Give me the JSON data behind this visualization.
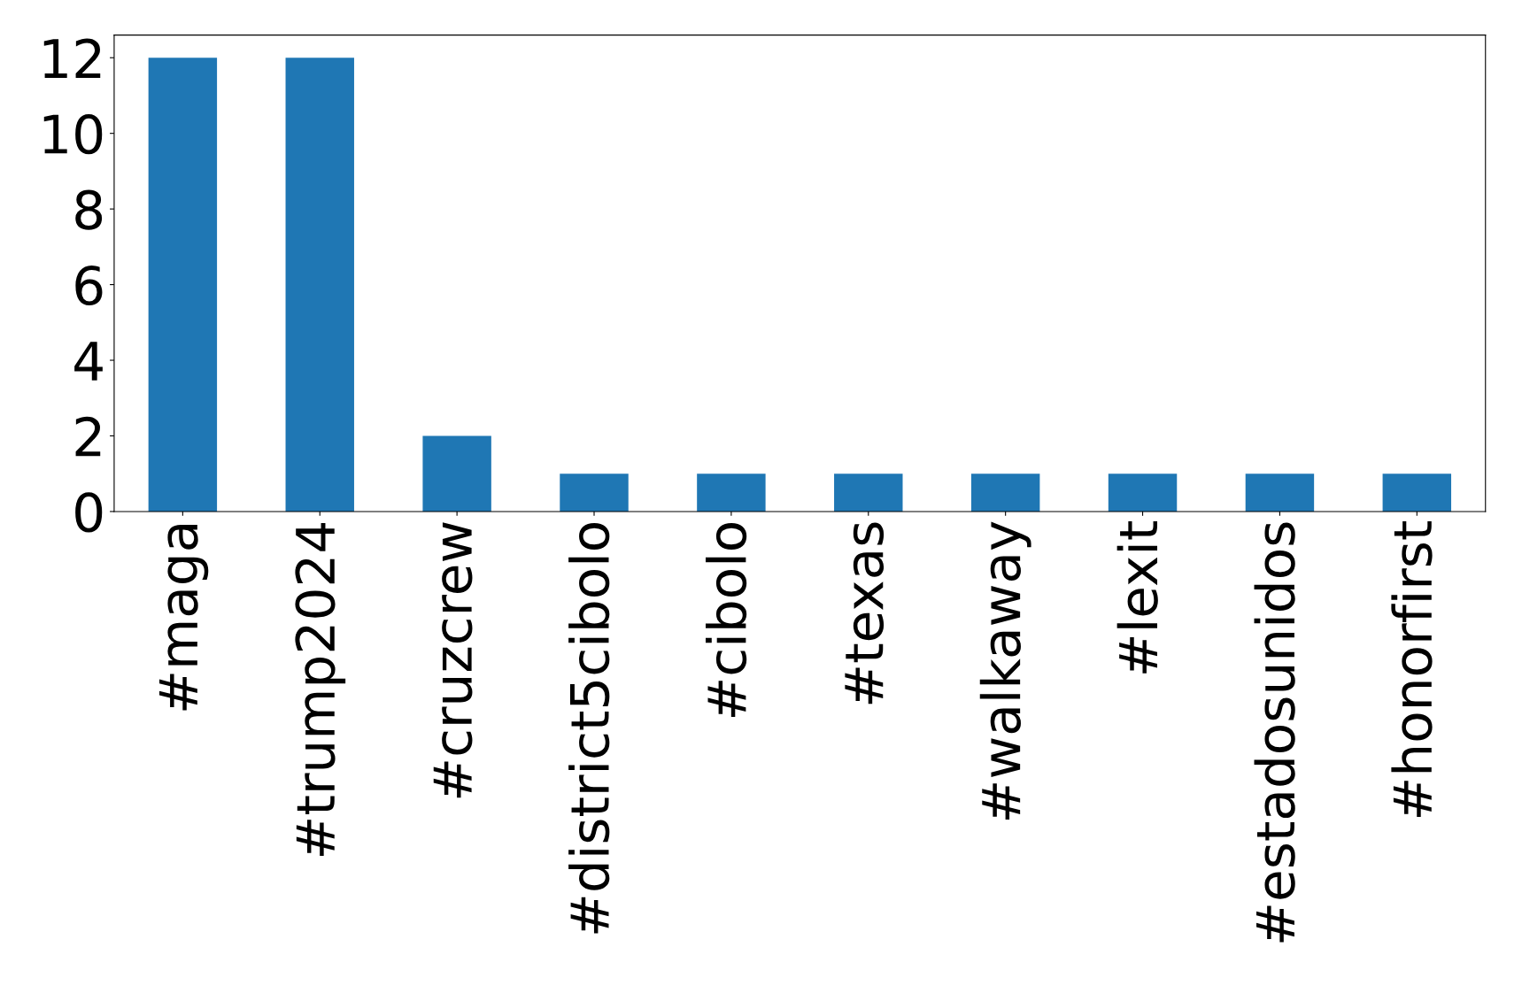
{
  "chart_data": {
    "type": "bar",
    "categories": [
      "#maga",
      "#trump2024",
      "#cruzcrew",
      "#district5cibolo",
      "#cibolo",
      "#texas",
      "#walkaway",
      "#lexit",
      "#estadosunidos",
      "#honorfirst"
    ],
    "values": [
      12,
      12,
      2,
      1,
      1,
      1,
      1,
      1,
      1,
      1
    ],
    "color": "#1f77b4",
    "ylim": [
      0,
      12.6
    ],
    "yticks": [
      0,
      2,
      4,
      6,
      8,
      10,
      12
    ],
    "grid": false,
    "legend": false
  }
}
